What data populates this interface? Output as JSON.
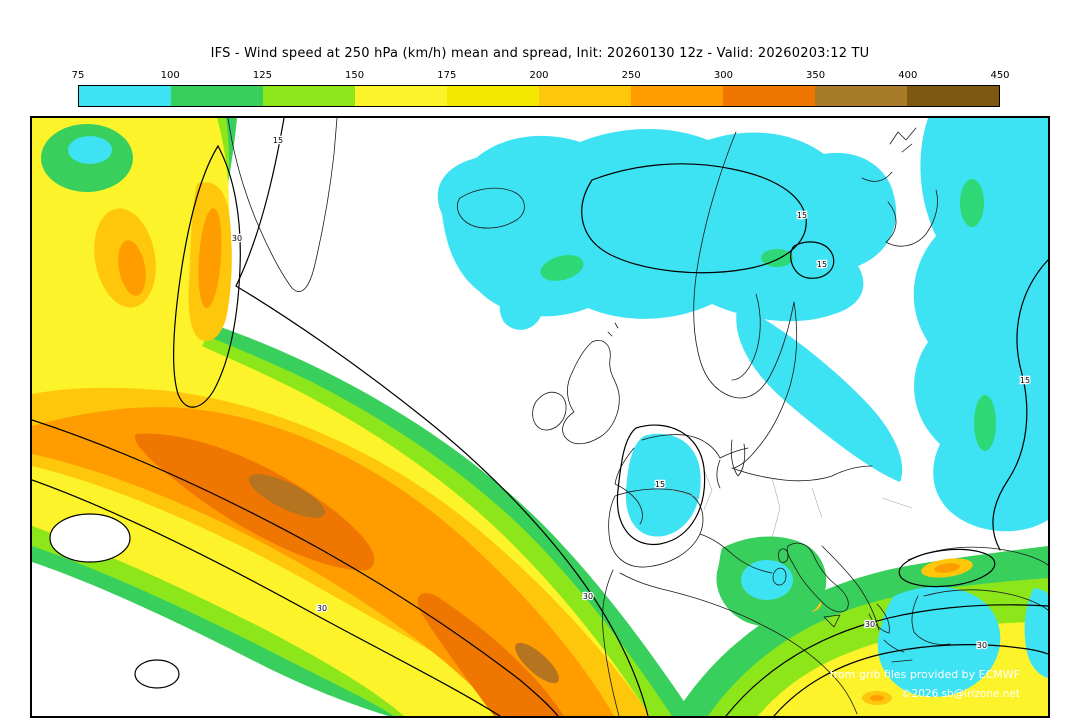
{
  "header": {
    "title": "IFS - Wind speed at 250 hPa (km/h) mean and spread, Init: 20260130 12z - Valid: 20260203:12 TU"
  },
  "colorbar": {
    "tick_labels": [
      "75",
      "100",
      "125",
      "150",
      "175",
      "200",
      "250",
      "300",
      "350",
      "400",
      "450"
    ],
    "segment_colors": [
      "#3DE3F2",
      "#39CF5D",
      "#8CE61A",
      "#FDF32B",
      "#F4E800",
      "#FEC70B",
      "#FF9C00",
      "#EF7600",
      "#A87B28",
      "#7E5713"
    ]
  },
  "palette": {
    "cyan": "#3DE3F2",
    "teal": "#2FD877",
    "green": "#39CF5D",
    "chartreuse": "#8CE61A",
    "yellow": "#FDF32B",
    "amber": "#FEC70B",
    "orange": "#FF9C00",
    "dark_orange": "#EF7600",
    "brown": "#B5741F"
  },
  "map": {
    "contour_labels": [
      "15",
      "30",
      "30",
      "15",
      "15",
      "15",
      "30",
      "30",
      "15",
      "30"
    ],
    "credits_line1": "from grib files provided by ECMWF",
    "credits_line2": "©2026 sb@irizone.net"
  }
}
